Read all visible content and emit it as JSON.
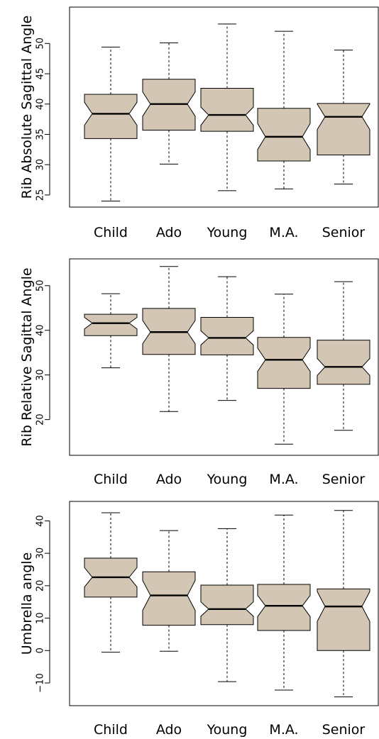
{
  "chart_data": [
    {
      "type": "boxplot",
      "notched": true,
      "ylabel": "Rib Absolute Sagittal Angle",
      "categories": [
        "Child",
        "Ado",
        "Young",
        "M.A.",
        "Senior"
      ],
      "yticks": [
        25,
        30,
        35,
        40,
        45,
        50
      ],
      "ylim": [
        23,
        56
      ],
      "boxes": [
        {
          "min": 24.0,
          "q1": 34.3,
          "median": 38.4,
          "q3": 41.6,
          "max": 49.4,
          "notch_lo": 36.5,
          "notch_hi": 40.3
        },
        {
          "min": 30.1,
          "q1": 35.7,
          "median": 40.0,
          "q3": 44.1,
          "max": 50.1,
          "notch_lo": 38.0,
          "notch_hi": 42.0
        },
        {
          "min": 25.7,
          "q1": 35.5,
          "median": 38.2,
          "q3": 42.6,
          "max": 53.2,
          "notch_lo": 36.5,
          "notch_hi": 39.5
        },
        {
          "min": 26.0,
          "q1": 30.6,
          "median": 34.6,
          "q3": 39.3,
          "max": 52.0,
          "notch_lo": 32.5,
          "notch_hi": 36.8
        },
        {
          "min": 26.8,
          "q1": 31.6,
          "median": 37.9,
          "q3": 40.1,
          "max": 48.9,
          "notch_lo": 35.8,
          "notch_hi": 40.0
        }
      ]
    },
    {
      "type": "boxplot",
      "notched": true,
      "ylabel": "Rib Relative Sagittal Angle",
      "categories": [
        "Child",
        "Ado",
        "Young",
        "M.A.",
        "Senior"
      ],
      "yticks": [
        20,
        30,
        40,
        50
      ],
      "ylim": [
        12,
        56
      ],
      "boxes": [
        {
          "min": 31.6,
          "q1": 38.8,
          "median": 41.6,
          "q3": 43.6,
          "max": 48.2,
          "notch_lo": 40.3,
          "notch_hi": 42.9
        },
        {
          "min": 21.8,
          "q1": 34.6,
          "median": 39.6,
          "q3": 44.9,
          "max": 54.3,
          "notch_lo": 37.0,
          "notch_hi": 42.2
        },
        {
          "min": 24.3,
          "q1": 34.5,
          "median": 38.3,
          "q3": 42.9,
          "max": 52.0,
          "notch_lo": 36.7,
          "notch_hi": 39.9
        },
        {
          "min": 14.5,
          "q1": 27.0,
          "median": 33.4,
          "q3": 38.4,
          "max": 48.1,
          "notch_lo": 30.8,
          "notch_hi": 36.0
        },
        {
          "min": 17.6,
          "q1": 27.9,
          "median": 31.8,
          "q3": 37.8,
          "max": 50.9,
          "notch_lo": 29.9,
          "notch_hi": 33.7
        }
      ]
    },
    {
      "type": "boxplot",
      "notched": true,
      "ylabel": "Umbrella angle",
      "categories": [
        "Child",
        "Ado",
        "Young",
        "M.A.",
        "Senior"
      ],
      "yticks": [
        -10,
        0,
        10,
        20,
        30,
        40
      ],
      "ylim": [
        -17,
        46
      ],
      "boxes": [
        {
          "min": -0.5,
          "q1": 16.5,
          "median": 22.6,
          "q3": 28.5,
          "max": 42.5,
          "notch_lo": 19.6,
          "notch_hi": 25.6
        },
        {
          "min": -0.2,
          "q1": 7.8,
          "median": 17.0,
          "q3": 24.3,
          "max": 37.0,
          "notch_lo": 12.4,
          "notch_hi": 21.6
        },
        {
          "min": -9.6,
          "q1": 8.0,
          "median": 12.8,
          "q3": 20.2,
          "max": 37.6,
          "notch_lo": 10.6,
          "notch_hi": 15.0
        },
        {
          "min": -12.2,
          "q1": 6.2,
          "median": 13.8,
          "q3": 20.4,
          "max": 41.8,
          "notch_lo": 10.5,
          "notch_hi": 17.0
        },
        {
          "min": -14.3,
          "q1": 0.0,
          "median": 13.6,
          "q3": 19.0,
          "max": 43.2,
          "notch_lo": 9.0,
          "notch_hi": 18.2
        }
      ]
    }
  ]
}
